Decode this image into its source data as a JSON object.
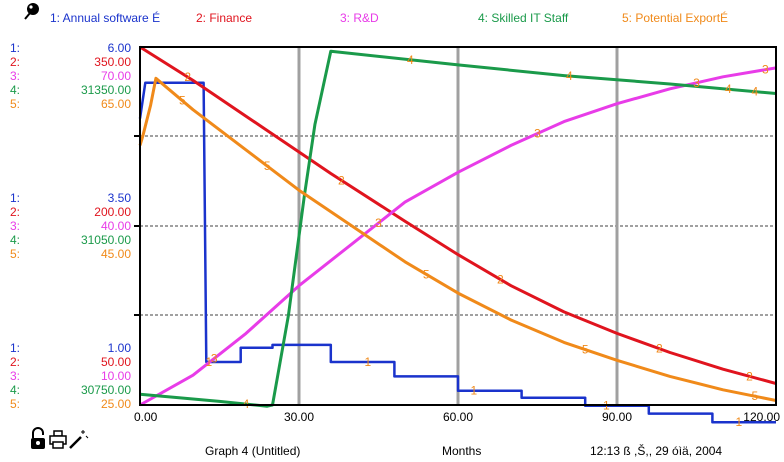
{
  "legend": [
    {
      "label": "1: Annual software É",
      "color": "#1a33cc"
    },
    {
      "label": "2: Finance",
      "color": "#e0141e"
    },
    {
      "label": "3: R&D",
      "color": "#e83ce8"
    },
    {
      "label": "4: Skilled IT Staff",
      "color": "#1a9a4a"
    },
    {
      "label": "5: Potential ExportÉ",
      "color": "#f08a1a"
    }
  ],
  "scales": {
    "top": [
      {
        "n": "1:",
        "v": "6.00"
      },
      {
        "n": "2:",
        "v": "350.00"
      },
      {
        "n": "3:",
        "v": "70.00"
      },
      {
        "n": "4:",
        "v": "31350.00"
      },
      {
        "n": "5:",
        "v": "65.00"
      }
    ],
    "mid": [
      {
        "n": "1:",
        "v": "3.50"
      },
      {
        "n": "2:",
        "v": "200.00"
      },
      {
        "n": "3:",
        "v": "40.00"
      },
      {
        "n": "4:",
        "v": "31050.00"
      },
      {
        "n": "5:",
        "v": "45.00"
      }
    ],
    "bottom": [
      {
        "n": "1:",
        "v": "1.00"
      },
      {
        "n": "2:",
        "v": "50.00"
      },
      {
        "n": "3:",
        "v": "10.00"
      },
      {
        "n": "4:",
        "v": "30750.00"
      },
      {
        "n": "5:",
        "v": "25.00"
      }
    ]
  },
  "footer": {
    "graph_title": "Graph 4 (Untitled)",
    "x_unit": "Months",
    "timestamp": "12:13 ß  ,Š,, 29 óìä, 2004"
  },
  "chart_data": {
    "type": "line",
    "x_ticks": [
      "0.00",
      "30.00",
      "60.00",
      "90.00",
      "120.00"
    ],
    "x_range": [
      0,
      120
    ],
    "series": [
      {
        "name": "1: Annual software É",
        "color": "#1a33cc",
        "ylim": [
          1,
          6
        ],
        "points": [
          [
            0,
            5
          ],
          [
            1,
            5.5
          ],
          [
            12,
            5.5
          ],
          [
            12.5,
            1.6
          ],
          [
            19,
            1.6
          ],
          [
            19,
            1.8
          ],
          [
            25,
            1.8
          ],
          [
            25,
            1.84
          ],
          [
            36,
            1.84
          ],
          [
            36,
            1.6
          ],
          [
            48,
            1.6
          ],
          [
            48,
            1.4
          ],
          [
            60,
            1.4
          ],
          [
            60,
            1.2
          ],
          [
            72,
            1.2
          ],
          [
            72,
            1.1
          ],
          [
            84,
            1.1
          ],
          [
            84,
            0.99
          ],
          [
            96,
            0.99
          ],
          [
            96,
            0.88
          ],
          [
            108,
            0.88
          ],
          [
            108,
            0.76
          ],
          [
            120,
            0.76
          ]
        ]
      },
      {
        "name": "2: Finance",
        "color": "#e0141e",
        "ylim": [
          50,
          350
        ],
        "points": [
          [
            0,
            350
          ],
          [
            10,
            322
          ],
          [
            20,
            292
          ],
          [
            30,
            262
          ],
          [
            36,
            244
          ],
          [
            50,
            204
          ],
          [
            60,
            176
          ],
          [
            70,
            150
          ],
          [
            80,
            128
          ],
          [
            90,
            110
          ],
          [
            100,
            94
          ],
          [
            110,
            80
          ],
          [
            120,
            68
          ]
        ]
      },
      {
        "name": "3: R&D",
        "color": "#e83ce8",
        "ylim": [
          10,
          70
        ],
        "points": [
          [
            0,
            10
          ],
          [
            10,
            15
          ],
          [
            20,
            22
          ],
          [
            30,
            30
          ],
          [
            40,
            37
          ],
          [
            50,
            44
          ],
          [
            60,
            49
          ],
          [
            70,
            53.5
          ],
          [
            80,
            57.5
          ],
          [
            90,
            60.5
          ],
          [
            100,
            63
          ],
          [
            110,
            65
          ],
          [
            120,
            66.5
          ]
        ]
      },
      {
        "name": "4: Skilled IT Staff",
        "color": "#1a9a4a",
        "ylim": [
          30750,
          31350
        ],
        "points": [
          [
            0,
            30768
          ],
          [
            15,
            30756
          ],
          [
            24,
            30748
          ],
          [
            25,
            30750
          ],
          [
            28,
            30900
          ],
          [
            31,
            31100
          ],
          [
            33,
            31220
          ],
          [
            36,
            31343
          ],
          [
            60,
            31320
          ],
          [
            80,
            31302
          ],
          [
            100,
            31288
          ],
          [
            120,
            31272
          ]
        ]
      },
      {
        "name": "5: Potential ExportÉ",
        "color": "#f08a1a",
        "ylim": [
          25,
          65
        ],
        "points": [
          [
            0,
            54
          ],
          [
            0.5,
            55
          ],
          [
            2,
            58.5
          ],
          [
            3,
            61.5
          ],
          [
            4,
            61
          ],
          [
            10,
            58
          ],
          [
            20,
            53.5
          ],
          [
            30,
            49
          ],
          [
            40,
            45
          ],
          [
            50,
            41
          ],
          [
            60,
            37.5
          ],
          [
            70,
            34.5
          ],
          [
            80,
            32
          ],
          [
            90,
            30
          ],
          [
            100,
            28.2
          ],
          [
            110,
            26.7
          ],
          [
            120,
            25.5
          ]
        ]
      }
    ],
    "marker_x": [
      [
        13,
        43,
        63,
        88,
        113
      ],
      [
        9,
        38,
        68,
        98,
        115
      ],
      [
        14,
        45,
        75,
        105,
        118
      ],
      [
        20,
        51,
        81,
        111,
        116
      ],
      [
        8,
        24,
        54,
        84,
        116
      ]
    ]
  }
}
